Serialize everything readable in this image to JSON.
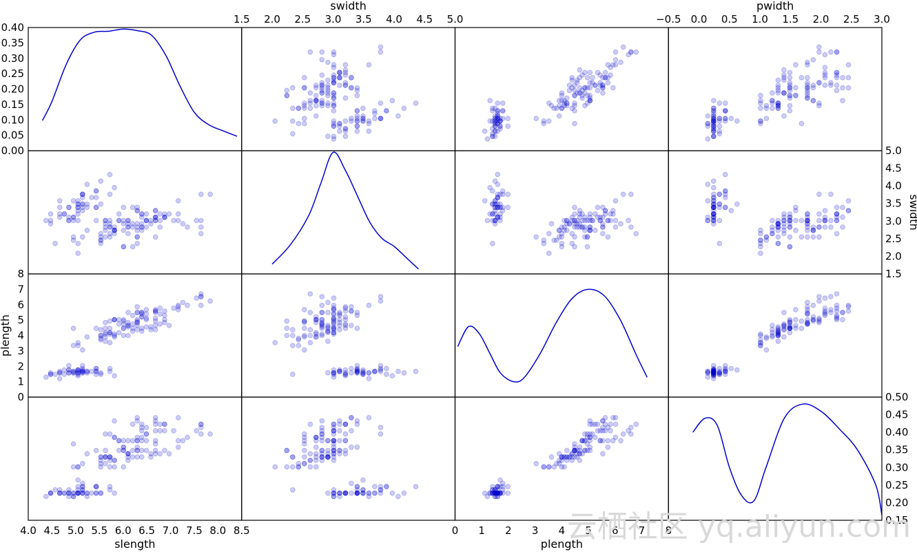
{
  "chart_data": {
    "type": "scatter",
    "variables": [
      "slength",
      "swidth",
      "plength",
      "pwidth"
    ],
    "ranges": {
      "slength": [
        4.0,
        8.5
      ],
      "swidth": [
        1.5,
        5.0
      ],
      "plength": [
        0,
        8
      ],
      "pwidth": [
        -0.5,
        3.0
      ]
    },
    "ticks": {
      "slength": [
        "4.0",
        "4.5",
        "5.0",
        "5.5",
        "6.0",
        "6.5",
        "7.0",
        "7.5",
        "8.0",
        "8.5"
      ],
      "swidth": [
        "1.5",
        "2.0",
        "2.5",
        "3.0",
        "3.5",
        "4.0",
        "4.5",
        "5.0"
      ],
      "plength": [
        "0",
        "1",
        "2",
        "3",
        "4",
        "5",
        "6",
        "7",
        "8"
      ],
      "pwidth": [
        "−0.5",
        "0.0",
        "0.5",
        "1.0",
        "1.5",
        "2.0",
        "2.5",
        "3.0"
      ],
      "density_slength": [
        "0.00",
        "0.05",
        "0.10",
        "0.15",
        "0.20",
        "0.25",
        "0.30",
        "0.35",
        "0.40"
      ],
      "density_pwidth": [
        "0.15",
        "0.20",
        "0.25",
        "0.30",
        "0.35",
        "0.40",
        "0.45",
        "0.50"
      ]
    },
    "density_ranges": {
      "slength": [
        0.0,
        0.4
      ],
      "swidth": [
        0.0,
        0.38
      ],
      "plength": [
        0.0,
        0.28
      ],
      "pwidth": [
        0.15,
        0.5
      ]
    },
    "kde": {
      "slength": [
        [
          4.3,
          0.098
        ],
        [
          4.5,
          0.16
        ],
        [
          4.8,
          0.28
        ],
        [
          5.1,
          0.36
        ],
        [
          5.4,
          0.385
        ],
        [
          5.7,
          0.388
        ],
        [
          6.0,
          0.395
        ],
        [
          6.3,
          0.39
        ],
        [
          6.6,
          0.375
        ],
        [
          6.9,
          0.31
        ],
        [
          7.2,
          0.21
        ],
        [
          7.5,
          0.125
        ],
        [
          7.8,
          0.085
        ],
        [
          8.1,
          0.065
        ],
        [
          8.4,
          0.047
        ]
      ],
      "swidth": [
        [
          2.0,
          0.03
        ],
        [
          2.3,
          0.09
        ],
        [
          2.6,
          0.18
        ],
        [
          2.8,
          0.28
        ],
        [
          3.0,
          0.375
        ],
        [
          3.2,
          0.32
        ],
        [
          3.4,
          0.24
        ],
        [
          3.6,
          0.16
        ],
        [
          3.8,
          0.11
        ],
        [
          4.0,
          0.085
        ],
        [
          4.2,
          0.05
        ],
        [
          4.4,
          0.015
        ]
      ],
      "plength": [
        [
          0.1,
          0.115
        ],
        [
          0.5,
          0.16
        ],
        [
          0.9,
          0.145
        ],
        [
          1.3,
          0.1
        ],
        [
          1.7,
          0.055
        ],
        [
          2.2,
          0.035
        ],
        [
          2.6,
          0.045
        ],
        [
          3.2,
          0.1
        ],
        [
          3.8,
          0.17
        ],
        [
          4.4,
          0.225
        ],
        [
          5.0,
          0.245
        ],
        [
          5.6,
          0.23
        ],
        [
          6.2,
          0.175
        ],
        [
          6.8,
          0.095
        ],
        [
          7.2,
          0.045
        ]
      ],
      "pwidth": [
        [
          -0.1,
          0.4
        ],
        [
          0.1,
          0.44
        ],
        [
          0.3,
          0.42
        ],
        [
          0.5,
          0.3
        ],
        [
          0.7,
          0.22
        ],
        [
          0.9,
          0.205
        ],
        [
          1.1,
          0.3
        ],
        [
          1.4,
          0.44
        ],
        [
          1.7,
          0.48
        ],
        [
          2.0,
          0.46
        ],
        [
          2.3,
          0.41
        ],
        [
          2.6,
          0.35
        ],
        [
          2.9,
          0.25
        ],
        [
          3.0,
          0.165
        ]
      ]
    },
    "points": [
      [
        5.1,
        3.5,
        1.4,
        0.2
      ],
      [
        4.9,
        3.0,
        1.4,
        0.2
      ],
      [
        4.7,
        3.2,
        1.3,
        0.2
      ],
      [
        4.6,
        3.1,
        1.5,
        0.2
      ],
      [
        5.0,
        3.6,
        1.4,
        0.2
      ],
      [
        5.4,
        3.9,
        1.7,
        0.4
      ],
      [
        4.6,
        3.4,
        1.4,
        0.3
      ],
      [
        5.0,
        3.4,
        1.5,
        0.2
      ],
      [
        4.4,
        2.9,
        1.4,
        0.2
      ],
      [
        4.9,
        3.1,
        1.5,
        0.1
      ],
      [
        5.4,
        3.7,
        1.5,
        0.2
      ],
      [
        4.8,
        3.4,
        1.6,
        0.2
      ],
      [
        4.8,
        3.0,
        1.4,
        0.1
      ],
      [
        4.3,
        3.0,
        1.1,
        0.1
      ],
      [
        5.8,
        4.0,
        1.2,
        0.2
      ],
      [
        5.7,
        4.4,
        1.5,
        0.4
      ],
      [
        5.4,
        3.9,
        1.3,
        0.4
      ],
      [
        5.1,
        3.5,
        1.4,
        0.3
      ],
      [
        5.7,
        3.8,
        1.7,
        0.3
      ],
      [
        5.1,
        3.8,
        1.5,
        0.3
      ],
      [
        5.4,
        3.4,
        1.7,
        0.2
      ],
      [
        5.1,
        3.7,
        1.5,
        0.4
      ],
      [
        4.6,
        3.6,
        1.0,
        0.2
      ],
      [
        5.1,
        3.3,
        1.7,
        0.5
      ],
      [
        4.8,
        3.4,
        1.9,
        0.2
      ],
      [
        5.0,
        3.0,
        1.6,
        0.2
      ],
      [
        5.0,
        3.4,
        1.6,
        0.4
      ],
      [
        5.2,
        3.5,
        1.5,
        0.2
      ],
      [
        5.2,
        3.4,
        1.4,
        0.2
      ],
      [
        4.7,
        3.2,
        1.6,
        0.2
      ],
      [
        4.8,
        3.1,
        1.6,
        0.2
      ],
      [
        5.4,
        3.4,
        1.5,
        0.4
      ],
      [
        5.2,
        4.1,
        1.5,
        0.1
      ],
      [
        5.5,
        4.2,
        1.4,
        0.2
      ],
      [
        4.9,
        3.1,
        1.5,
        0.2
      ],
      [
        5.0,
        3.2,
        1.2,
        0.2
      ],
      [
        5.5,
        3.5,
        1.3,
        0.2
      ],
      [
        4.9,
        3.6,
        1.4,
        0.1
      ],
      [
        4.4,
        3.0,
        1.3,
        0.2
      ],
      [
        5.1,
        3.4,
        1.5,
        0.2
      ],
      [
        5.0,
        3.5,
        1.3,
        0.3
      ],
      [
        4.5,
        2.3,
        1.3,
        0.3
      ],
      [
        4.4,
        3.2,
        1.3,
        0.2
      ],
      [
        5.0,
        3.5,
        1.6,
        0.6
      ],
      [
        5.1,
        3.8,
        1.9,
        0.4
      ],
      [
        4.8,
        3.0,
        1.4,
        0.3
      ],
      [
        5.1,
        3.8,
        1.6,
        0.2
      ],
      [
        4.6,
        3.2,
        1.4,
        0.2
      ],
      [
        5.3,
        3.7,
        1.5,
        0.2
      ],
      [
        5.0,
        3.3,
        1.4,
        0.2
      ],
      [
        7.0,
        3.2,
        4.7,
        1.4
      ],
      [
        6.4,
        3.2,
        4.5,
        1.5
      ],
      [
        6.9,
        3.1,
        4.9,
        1.5
      ],
      [
        5.5,
        2.3,
        4.0,
        1.3
      ],
      [
        6.5,
        2.8,
        4.6,
        1.5
      ],
      [
        5.7,
        2.8,
        4.5,
        1.3
      ],
      [
        6.3,
        3.3,
        4.7,
        1.6
      ],
      [
        4.9,
        2.4,
        3.3,
        1.0
      ],
      [
        6.6,
        2.9,
        4.6,
        1.3
      ],
      [
        5.2,
        2.7,
        3.9,
        1.4
      ],
      [
        5.0,
        2.0,
        3.5,
        1.0
      ],
      [
        5.9,
        3.0,
        4.2,
        1.5
      ],
      [
        6.0,
        2.2,
        4.0,
        1.0
      ],
      [
        6.1,
        2.9,
        4.7,
        1.4
      ],
      [
        5.6,
        2.9,
        3.6,
        1.3
      ],
      [
        6.7,
        3.1,
        4.4,
        1.4
      ],
      [
        5.6,
        3.0,
        4.5,
        1.5
      ],
      [
        5.8,
        2.7,
        4.1,
        1.0
      ],
      [
        6.2,
        2.2,
        4.5,
        1.5
      ],
      [
        5.6,
        2.5,
        3.9,
        1.1
      ],
      [
        5.9,
        3.2,
        4.8,
        1.8
      ],
      [
        6.1,
        2.8,
        4.0,
        1.3
      ],
      [
        6.3,
        2.5,
        4.9,
        1.5
      ],
      [
        6.1,
        2.8,
        4.7,
        1.2
      ],
      [
        6.4,
        2.9,
        4.3,
        1.3
      ],
      [
        6.6,
        3.0,
        4.4,
        1.4
      ],
      [
        6.8,
        2.8,
        4.8,
        1.4
      ],
      [
        6.7,
        3.0,
        5.0,
        1.7
      ],
      [
        6.0,
        2.9,
        4.5,
        1.5
      ],
      [
        5.7,
        2.6,
        3.5,
        1.0
      ],
      [
        5.5,
        2.4,
        3.8,
        1.1
      ],
      [
        5.5,
        2.4,
        3.7,
        1.0
      ],
      [
        5.8,
        2.7,
        3.9,
        1.2
      ],
      [
        6.0,
        2.7,
        5.1,
        1.6
      ],
      [
        5.4,
        3.0,
        4.5,
        1.5
      ],
      [
        6.0,
        3.4,
        4.5,
        1.6
      ],
      [
        6.7,
        3.1,
        4.7,
        1.5
      ],
      [
        6.3,
        2.3,
        4.4,
        1.3
      ],
      [
        5.6,
        3.0,
        4.1,
        1.3
      ],
      [
        5.5,
        2.5,
        4.0,
        1.3
      ],
      [
        5.5,
        2.6,
        4.4,
        1.2
      ],
      [
        6.1,
        3.0,
        4.6,
        1.4
      ],
      [
        5.8,
        2.6,
        4.0,
        1.2
      ],
      [
        5.0,
        2.3,
        3.3,
        1.0
      ],
      [
        5.6,
        2.7,
        4.2,
        1.3
      ],
      [
        5.7,
        3.0,
        4.2,
        1.2
      ],
      [
        5.7,
        2.9,
        4.2,
        1.3
      ],
      [
        6.2,
        2.9,
        4.3,
        1.3
      ],
      [
        5.1,
        2.5,
        3.0,
        1.1
      ],
      [
        5.7,
        2.8,
        4.1,
        1.3
      ],
      [
        6.3,
        3.3,
        6.0,
        2.5
      ],
      [
        5.8,
        2.7,
        5.1,
        1.9
      ],
      [
        7.1,
        3.0,
        5.9,
        2.1
      ],
      [
        6.3,
        2.9,
        5.6,
        1.8
      ],
      [
        6.5,
        3.0,
        5.8,
        2.2
      ],
      [
        7.6,
        3.0,
        6.6,
        2.1
      ],
      [
        4.9,
        2.5,
        4.5,
        1.7
      ],
      [
        7.3,
        2.9,
        6.3,
        1.8
      ],
      [
        6.7,
        2.5,
        5.8,
        1.8
      ],
      [
        7.2,
        3.6,
        6.1,
        2.5
      ],
      [
        6.5,
        3.2,
        5.1,
        2.0
      ],
      [
        6.4,
        2.7,
        5.3,
        1.9
      ],
      [
        6.8,
        3.0,
        5.5,
        2.1
      ],
      [
        5.7,
        2.5,
        5.0,
        2.0
      ],
      [
        5.8,
        2.8,
        5.1,
        2.4
      ],
      [
        6.4,
        3.2,
        5.3,
        2.3
      ],
      [
        6.5,
        3.0,
        5.5,
        1.8
      ],
      [
        7.7,
        3.8,
        6.7,
        2.2
      ],
      [
        7.7,
        2.6,
        6.9,
        2.3
      ],
      [
        6.0,
        2.2,
        5.0,
        1.5
      ],
      [
        6.9,
        3.2,
        5.7,
        2.3
      ],
      [
        5.6,
        2.8,
        4.9,
        2.0
      ],
      [
        7.7,
        2.8,
        6.7,
        2.0
      ],
      [
        6.3,
        2.7,
        4.9,
        1.8
      ],
      [
        6.7,
        3.3,
        5.7,
        2.1
      ],
      [
        7.2,
        3.2,
        6.0,
        1.8
      ],
      [
        6.2,
        2.8,
        4.8,
        1.8
      ],
      [
        6.1,
        3.0,
        4.9,
        1.8
      ],
      [
        6.4,
        2.8,
        5.6,
        2.1
      ],
      [
        7.2,
        3.0,
        5.8,
        1.6
      ],
      [
        7.4,
        2.8,
        6.1,
        1.9
      ],
      [
        7.9,
        3.8,
        6.4,
        2.0
      ],
      [
        6.4,
        2.8,
        5.6,
        2.2
      ],
      [
        6.3,
        2.8,
        5.1,
        1.5
      ],
      [
        6.1,
        2.6,
        5.6,
        1.4
      ],
      [
        7.7,
        3.0,
        6.1,
        2.3
      ],
      [
        6.3,
        3.4,
        5.6,
        2.4
      ],
      [
        6.4,
        3.1,
        5.5,
        1.8
      ],
      [
        6.0,
        3.0,
        4.8,
        1.8
      ],
      [
        6.9,
        3.1,
        5.4,
        2.1
      ],
      [
        6.7,
        3.1,
        5.6,
        2.4
      ],
      [
        6.9,
        3.1,
        5.1,
        2.3
      ],
      [
        5.8,
        2.7,
        5.1,
        1.9
      ],
      [
        6.8,
        3.2,
        5.9,
        2.3
      ],
      [
        6.7,
        3.3,
        5.7,
        2.5
      ],
      [
        6.7,
        3.0,
        5.2,
        2.3
      ],
      [
        6.3,
        2.5,
        5.0,
        1.9
      ],
      [
        6.5,
        3.0,
        5.2,
        2.0
      ],
      [
        6.2,
        3.4,
        5.4,
        2.3
      ],
      [
        5.9,
        3.0,
        5.1,
        1.8
      ]
    ],
    "marker_color": "#0000cc",
    "line_color": "#0000cc",
    "grid": false,
    "watermark": "云栖社区 yq.aliyun.com"
  }
}
